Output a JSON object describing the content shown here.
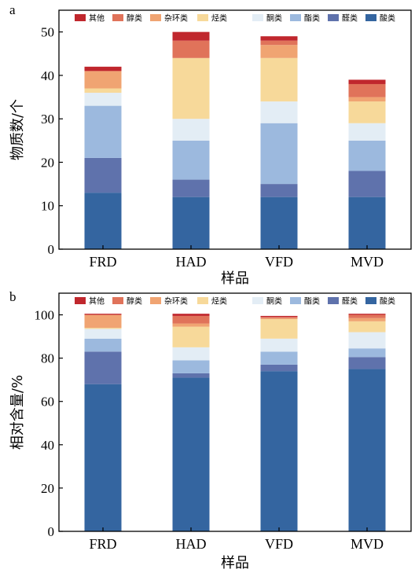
{
  "colors": {
    "qita": "#c0272d",
    "chun": "#e0735a",
    "zahuan": "#f0a472",
    "ting": "#f7d99a",
    "tong": "#e3edf5",
    "zhi": "#9cb9de",
    "quan": "#5f72ac",
    "suan": "#3465a0"
  },
  "chart_data": [
    {
      "panel_label": "a",
      "type": "bar",
      "stacked": true,
      "categories": [
        "FRD",
        "HAD",
        "VFD",
        "MVD"
      ],
      "xlabel": "样品",
      "ylabel": "物质数/个",
      "ylim": [
        0,
        55
      ],
      "yticks": [
        0,
        10,
        20,
        30,
        40,
        50
      ],
      "grid": false,
      "legend": [
        {
          "key": "qita",
          "label": "其他"
        },
        {
          "key": "chun",
          "label": "醇类"
        },
        {
          "key": "zahuan",
          "label": "杂环类"
        },
        {
          "key": "ting",
          "label": "烃类"
        },
        {
          "key": "tong",
          "label": "酮类"
        },
        {
          "key": "zhi",
          "label": "酯类"
        },
        {
          "key": "quan",
          "label": "醛类"
        },
        {
          "key": "suan",
          "label": "酸类"
        }
      ],
      "series": [
        {
          "key": "suan",
          "values": [
            13,
            12,
            12,
            12
          ]
        },
        {
          "key": "quan",
          "values": [
            8,
            4,
            3,
            6
          ]
        },
        {
          "key": "zhi",
          "values": [
            12,
            9,
            14,
            7
          ]
        },
        {
          "key": "tong",
          "values": [
            3,
            5,
            5,
            4
          ]
        },
        {
          "key": "ting",
          "values": [
            1,
            14,
            10,
            5
          ]
        },
        {
          "key": "zahuan",
          "values": [
            4,
            0,
            3,
            1
          ]
        },
        {
          "key": "chun",
          "values": [
            0,
            4,
            1,
            3
          ]
        },
        {
          "key": "qita",
          "values": [
            1,
            2,
            1,
            1
          ]
        }
      ]
    },
    {
      "panel_label": "b",
      "type": "bar",
      "stacked": true,
      "categories": [
        "FRD",
        "HAD",
        "VFD",
        "MVD"
      ],
      "xlabel": "样品",
      "ylabel": "相对含量/%",
      "ylim": [
        0,
        110
      ],
      "yticks": [
        0,
        20,
        40,
        60,
        80,
        100
      ],
      "grid": false,
      "legend": [
        {
          "key": "qita",
          "label": "其他"
        },
        {
          "key": "chun",
          "label": "醇类"
        },
        {
          "key": "zahuan",
          "label": "杂环类"
        },
        {
          "key": "ting",
          "label": "烃类"
        },
        {
          "key": "tong",
          "label": "酮类"
        },
        {
          "key": "zhi",
          "label": "酯类"
        },
        {
          "key": "quan",
          "label": "醛类"
        },
        {
          "key": "suan",
          "label": "酸类"
        }
      ],
      "series": [
        {
          "key": "suan",
          "values": [
            68,
            71,
            74,
            75
          ]
        },
        {
          "key": "quan",
          "values": [
            15,
            2,
            3,
            5.5
          ]
        },
        {
          "key": "zhi",
          "values": [
            6,
            6,
            6,
            4
          ]
        },
        {
          "key": "tong",
          "values": [
            4.5,
            6,
            6,
            7.5
          ]
        },
        {
          "key": "ting",
          "values": [
            0.5,
            9.5,
            9,
            5
          ]
        },
        {
          "key": "zahuan",
          "values": [
            6,
            1.5,
            0.5,
            1.5
          ]
        },
        {
          "key": "chun",
          "values": [
            0,
            3.5,
            0.5,
            1.5
          ]
        },
        {
          "key": "qita",
          "values": [
            0.5,
            1,
            0.5,
            0.5
          ]
        }
      ]
    }
  ]
}
